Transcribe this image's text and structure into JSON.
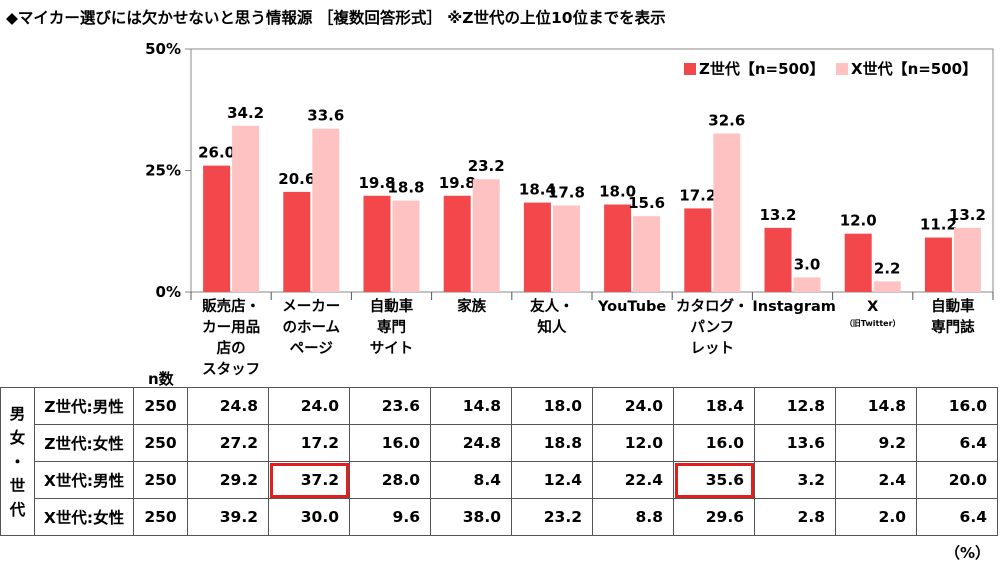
{
  "title": "◆マイカー選びには欠かせないと思う情報源 ［複数回答形式］ ※Z世代の上位10位までを表示",
  "chart_data": {
    "type": "bar",
    "categories": [
      "販売店・カー用品店のスタッフ",
      "メーカーのホームページ",
      "自動車専門サイト",
      "家族",
      "友人・知人",
      "YouTube",
      "カタログ・パンフレット",
      "Instagram",
      "X（旧Twitter）",
      "自動車専門誌"
    ],
    "category_lines": [
      [
        "販売店・",
        "カー用品",
        "店の",
        "スタッフ"
      ],
      [
        "メーカー",
        "のホーム",
        "ページ"
      ],
      [
        "自動車",
        "専門",
        "サイト"
      ],
      [
        "家族"
      ],
      [
        "友人・",
        "知人"
      ],
      [
        "YouTube"
      ],
      [
        "カタログ・",
        "パンフ",
        "レット"
      ],
      [
        "Instagram"
      ],
      [
        "X"
      ],
      [
        "自動車",
        "専門誌"
      ]
    ],
    "category_notes": [
      "",
      "",
      "",
      "",
      "",
      "",
      "",
      "",
      "（旧Twitter）",
      ""
    ],
    "series": [
      {
        "name": "Z世代【n=500】",
        "color": "#f2484b",
        "values": [
          26.0,
          20.6,
          19.8,
          19.8,
          18.4,
          18.0,
          17.2,
          13.2,
          12.0,
          11.2
        ]
      },
      {
        "name": "X世代【n=500】",
        "color": "#ffc2c3",
        "values": [
          34.2,
          33.6,
          18.8,
          23.2,
          17.8,
          15.6,
          32.6,
          3.0,
          2.2,
          13.2
        ]
      }
    ],
    "ylim": [
      0,
      50
    ],
    "yticks": [
      "0%",
      "25%",
      "50%"
    ],
    "ytick_values": [
      0,
      25,
      50
    ],
    "legend_position": "top-right"
  },
  "table": {
    "n_header": "n数",
    "group_label": [
      "男",
      "女",
      "・",
      "世",
      "代"
    ],
    "rows": [
      {
        "label": "Z世代:男性",
        "n": "250",
        "values": [
          "24.8",
          "24.0",
          "23.6",
          "14.8",
          "18.0",
          "24.0",
          "18.4",
          "12.8",
          "14.8",
          "16.0"
        ]
      },
      {
        "label": "Z世代:女性",
        "n": "250",
        "values": [
          "27.2",
          "17.2",
          "16.0",
          "24.8",
          "18.8",
          "12.0",
          "16.0",
          "13.6",
          "9.2",
          "6.4"
        ]
      },
      {
        "label": "X世代:男性",
        "n": "250",
        "values": [
          "29.2",
          "37.2",
          "28.0",
          "8.4",
          "12.4",
          "22.4",
          "35.6",
          "3.2",
          "2.4",
          "20.0"
        ]
      },
      {
        "label": "X世代:女性",
        "n": "250",
        "values": [
          "39.2",
          "30.0",
          "9.6",
          "38.0",
          "23.2",
          "8.8",
          "29.6",
          "2.8",
          "2.0",
          "6.4"
        ]
      }
    ],
    "highlighted": [
      [
        2,
        1
      ],
      [
        2,
        6
      ]
    ],
    "highlight_color": "#e0201f"
  },
  "unit_note": "（%）"
}
